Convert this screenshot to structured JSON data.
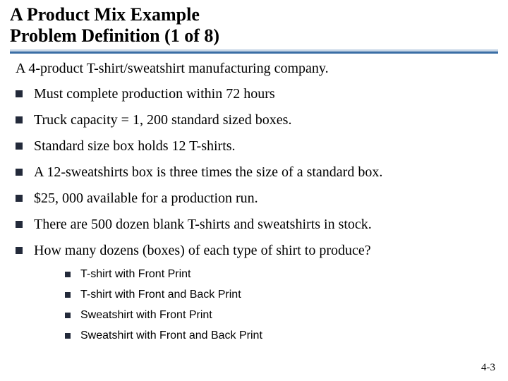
{
  "title": {
    "line1": "A Product Mix Example",
    "line2": "Problem Definition (1 of 8)"
  },
  "intro": "A 4-product T-shirt/sweatshirt manufacturing company.",
  "bullets": [
    "Must complete production within 72 hours",
    "Truck capacity = 1, 200 standard sized boxes.",
    "Standard size box holds 12 T-shirts.",
    "A 12-sweatshirts box is three times the size of a standard box.",
    "$25, 000 available for a production run.",
    "There are 500 dozen blank T-shirts and sweatshirts in stock.",
    "How many dozens (boxes) of each type of shirt to produce?"
  ],
  "subbullets": [
    "T-shirt with Front Print",
    "T-shirt with Front and Back Print",
    "Sweatshirt with Front Print",
    "Sweatshirt with Front and Back Print"
  ],
  "pagenum": "4-3",
  "colors": {
    "underline_light": "#c7d6e6",
    "underline_dark": "#3a6ea5",
    "bullet": "#232a3a"
  }
}
